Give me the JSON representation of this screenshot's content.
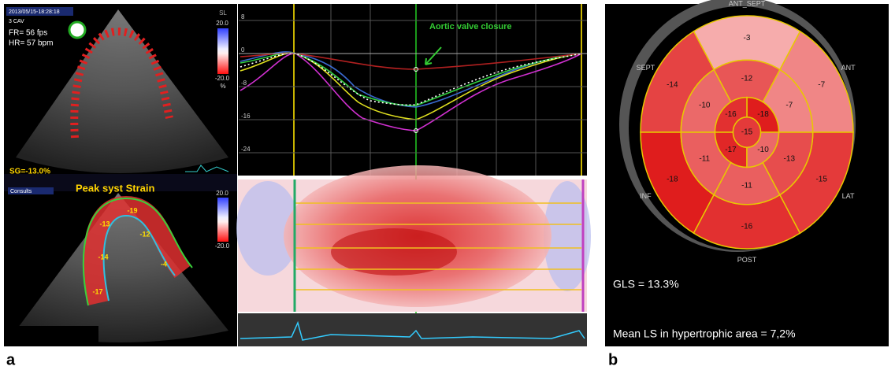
{
  "panel_a": {
    "label": "a",
    "echo_top": {
      "timestamp": "2013/05/15-18:28:18",
      "view": "3 CAV",
      "fr": "FR= 56 fps",
      "hr": "HR= 57 bpm",
      "scale_title": "SL",
      "scale_top": "20.0",
      "scale_bottom": "-20.0",
      "scale_unit": "%"
    },
    "status": {
      "sg": "SG=-13.0%",
      "consult": "Consults",
      "peak": "Peak syst Strain"
    },
    "echo_bottom": {
      "scale_top": "20.0",
      "scale_bottom": "-20.0",
      "segments": [
        -19,
        -13,
        -12,
        -14,
        -4,
        -17
      ]
    },
    "curves": {
      "annotation": "Aortic valve closure",
      "yticks": [
        8,
        0,
        -8,
        -16,
        -24
      ]
    }
  },
  "panel_b": {
    "label": "b",
    "walls": [
      "ANT",
      "ANT_SEPT",
      "SEPT",
      "INF",
      "POST",
      "LAT"
    ],
    "basal": [
      -7,
      -3,
      -14,
      -18,
      -16,
      -15
    ],
    "mid": [
      -7,
      -12,
      -10,
      -11,
      -11,
      -13
    ],
    "apical": [
      -18,
      -16,
      -17,
      -10
    ],
    "apex": -15,
    "gls": "GLS = 13.3%",
    "mean": "Mean LS in hypertrophic  area = 7,2%"
  }
}
